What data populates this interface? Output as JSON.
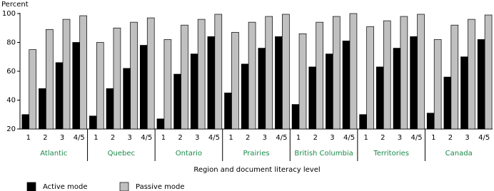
{
  "chart_data": {
    "type": "grouped-bar",
    "y_label": "Percent",
    "x_label": "Region and document literacy level",
    "groups": [
      "Atlantic",
      "Quebec",
      "Ontario",
      "Prairies",
      "British Columbia",
      "Territories",
      "Canada"
    ],
    "categories": [
      "1",
      "2",
      "3",
      "4/5",
      "1",
      "2",
      "3",
      "4/5",
      "1",
      "2",
      "3",
      "4/5",
      "1",
      "2",
      "3",
      "4/5",
      "1",
      "2",
      "3",
      "4/5",
      "1",
      "2",
      "3",
      "4/5",
      "1",
      "2",
      "3",
      "4/5"
    ],
    "series": [
      {
        "name": "Active mode",
        "color": "#000000",
        "values": [
          30,
          48,
          66,
          80,
          29,
          48,
          62,
          78,
          27,
          58,
          72,
          84,
          45,
          65,
          76,
          84,
          37,
          63,
          72,
          81,
          30,
          63,
          76,
          84,
          31,
          56,
          70,
          82
        ]
      },
      {
        "name": "Passive mode",
        "color": "#c0c0c0",
        "values": [
          75,
          89,
          96,
          98.5,
          80,
          90,
          94,
          97,
          82,
          92,
          96,
          99.5,
          87,
          94,
          98,
          99.5,
          86,
          94,
          98,
          100,
          91,
          95,
          98,
          99.5,
          82,
          92,
          96,
          99
        ]
      }
    ],
    "ylim": [
      20,
      100
    ],
    "yticks": [
      20,
      40,
      60,
      80,
      100
    ],
    "grid": false,
    "legend": "bottom"
  }
}
